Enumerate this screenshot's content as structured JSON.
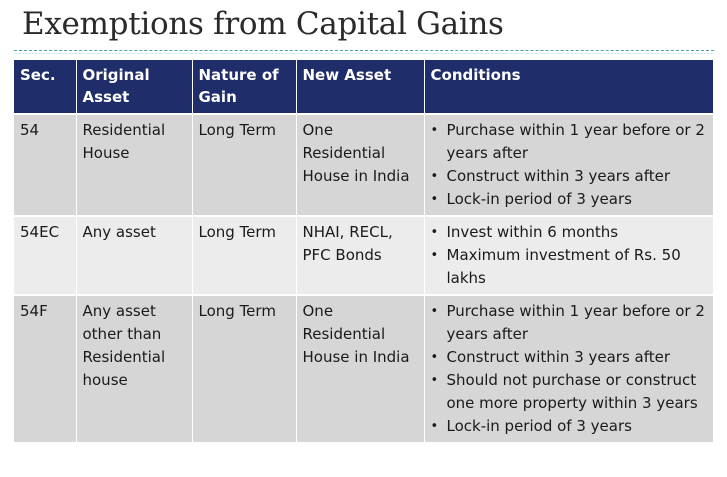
{
  "slide": {
    "title": "Exemptions from Capital Gains"
  },
  "table": {
    "headers": [
      "Sec.",
      "Original Asset",
      "Nature of Gain",
      "New Asset",
      "Conditions"
    ],
    "rows": [
      {
        "sec": "54",
        "original_asset": "Residential House",
        "nature_of_gain": "Long Term",
        "new_asset": "One Residential House in India",
        "conditions": [
          "Purchase within 1 year before or 2 years after",
          "Construct within 3 years after",
          "Lock-in period of 3 years"
        ]
      },
      {
        "sec": "54EC",
        "original_asset": "Any asset",
        "nature_of_gain": "Long Term",
        "new_asset": "NHAI, RECL, PFC Bonds",
        "conditions": [
          "Invest within 6 months",
          "Maximum investment of Rs. 50 lakhs"
        ]
      },
      {
        "sec": "54F",
        "original_asset": "Any asset other than Residential house",
        "nature_of_gain": "Long Term",
        "new_asset": "One Residential House in India",
        "conditions": [
          "Purchase within 1 year before or 2 years after",
          "Construct within 3 years after",
          "Should not purchase or construct one more property within 3 years",
          "Lock-in period of 3 years"
        ]
      }
    ]
  },
  "colors": {
    "header_bg": "#1f2d6a",
    "row_dark": "#d6d6d6",
    "row_light": "#ececec",
    "rule": "#4a9fb0"
  }
}
